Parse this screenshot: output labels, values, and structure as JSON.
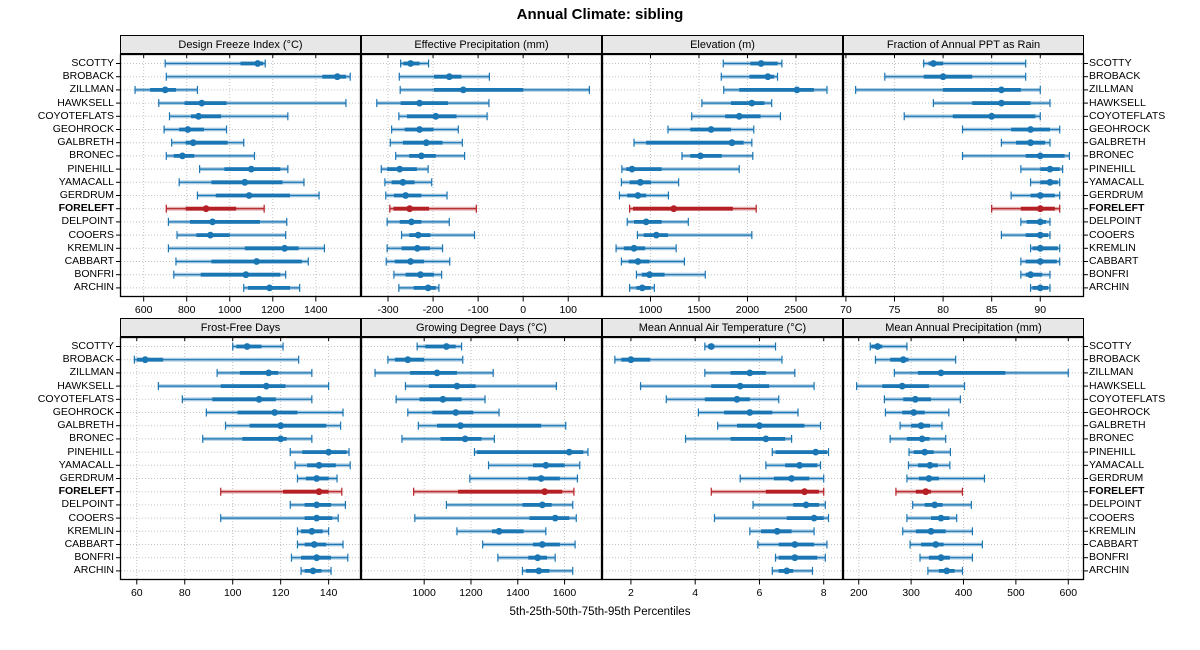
{
  "title": "Annual Climate: sibling",
  "caption": "5th-25th-50th-75th-95th Percentiles",
  "highlight_station": "FORELEFT",
  "colors": {
    "series": "#1b76b4",
    "highlight": "#b42025",
    "strip_bg": "#e7e7e7",
    "grid": "#c3c3c3",
    "panel_border": "#000000"
  },
  "stations": [
    "SCOTTY",
    "BROBACK",
    "ZILLMAN",
    "HAWKSELL",
    "COYOTEFLATS",
    "GEOHROCK",
    "GALBRETH",
    "BRONEC",
    "PINEHILL",
    "YAMACALL",
    "GERDRUM",
    "FORELEFT",
    "DELPOINT",
    "COOERS",
    "KREMLIN",
    "CABBART",
    "BONFRI",
    "ARCHIN"
  ],
  "percentile_labels": [
    "p5",
    "p25",
    "p50",
    "p75",
    "p95"
  ],
  "chart_data": [
    {
      "type": "percentile-dotplot",
      "panel": "Design Freeze Index (°C)",
      "grid_row": 0,
      "grid_col": 0,
      "xlim": [
        490,
        1610
      ],
      "ticks": [
        600,
        800,
        1000,
        1200,
        1400
      ],
      "values": [
        [
          700,
          1050,
          1130,
          1155,
          1165
        ],
        [
          705,
          1430,
          1500,
          1540,
          1560
        ],
        [
          560,
          630,
          700,
          750,
          850
        ],
        [
          670,
          790,
          870,
          985,
          1540
        ],
        [
          720,
          820,
          855,
          960,
          1270
        ],
        [
          695,
          765,
          805,
          880,
          985
        ],
        [
          730,
          795,
          830,
          990,
          1065
        ],
        [
          705,
          740,
          780,
          835,
          1115
        ],
        [
          860,
          975,
          1100,
          1235,
          1270
        ],
        [
          765,
          915,
          1070,
          1245,
          1345
        ],
        [
          850,
          935,
          1090,
          1280,
          1415
        ],
        [
          705,
          795,
          890,
          1030,
          1160
        ],
        [
          715,
          815,
          920,
          1140,
          1265
        ],
        [
          755,
          845,
          910,
          1000,
          1260
        ],
        [
          715,
          1070,
          1255,
          1320,
          1440
        ],
        [
          750,
          915,
          1125,
          1335,
          1365
        ],
        [
          740,
          865,
          1075,
          1235,
          1260
        ],
        [
          1065,
          1085,
          1185,
          1280,
          1325
        ]
      ]
    },
    {
      "type": "percentile-dotplot",
      "panel": "Effective Precipitation (mm)",
      "grid_row": 0,
      "grid_col": 1,
      "xlim": [
        -360,
        175
      ],
      "ticks": [
        -300,
        -200,
        -100,
        0,
        100
      ],
      "values": [
        [
          -272,
          -266,
          -250,
          -230,
          -210
        ],
        [
          -275,
          -198,
          -164,
          -137,
          -75
        ],
        [
          -273,
          -198,
          -133,
          0,
          147
        ],
        [
          -325,
          -272,
          -230,
          -167,
          -76
        ],
        [
          -276,
          -258,
          -194,
          -148,
          -80
        ],
        [
          -292,
          -263,
          -230,
          -199,
          -144
        ],
        [
          -295,
          -267,
          -215,
          -179,
          -135
        ],
        [
          -283,
          -253,
          -226,
          -194,
          -130
        ],
        [
          -315,
          -302,
          -274,
          -236,
          -211
        ],
        [
          -307,
          -292,
          -267,
          -241,
          -203
        ],
        [
          -305,
          -287,
          -261,
          -226,
          -169
        ],
        [
          -296,
          -288,
          -252,
          -209,
          -104
        ],
        [
          -302,
          -274,
          -248,
          -226,
          -164
        ],
        [
          -270,
          -253,
          -233,
          -206,
          -108
        ],
        [
          -302,
          -270,
          -235,
          -207,
          -179
        ],
        [
          -304,
          -285,
          -250,
          -220,
          -163
        ],
        [
          -287,
          -261,
          -228,
          -198,
          -181
        ],
        [
          -276,
          -243,
          -211,
          -194,
          -187
        ]
      ]
    },
    {
      "type": "percentile-dotplot",
      "panel": "Elevation (m)",
      "grid_row": 0,
      "grid_col": 2,
      "xlim": [
        500,
        2985
      ],
      "ticks": [
        1000,
        1500,
        2000,
        2500
      ],
      "values": [
        [
          1750,
          2030,
          2140,
          2310,
          2355
        ],
        [
          1730,
          2020,
          2210,
          2275,
          2310
        ],
        [
          1755,
          1915,
          2510,
          2685,
          2820
        ],
        [
          1530,
          1830,
          2045,
          2175,
          2250
        ],
        [
          1425,
          1770,
          1915,
          2135,
          2340
        ],
        [
          1180,
          1410,
          1625,
          1830,
          2065
        ],
        [
          830,
          955,
          1840,
          1960,
          2045
        ],
        [
          1325,
          1410,
          1515,
          1735,
          2055
        ],
        [
          705,
          750,
          810,
          1115,
          1915
        ],
        [
          700,
          785,
          895,
          1005,
          1290
        ],
        [
          680,
          760,
          870,
          955,
          1185
        ],
        [
          785,
          820,
          1240,
          1850,
          2090
        ],
        [
          760,
          830,
          955,
          1115,
          1390
        ],
        [
          865,
          930,
          1060,
          1180,
          2045
        ],
        [
          645,
          725,
          830,
          945,
          1265
        ],
        [
          700,
          775,
          870,
          990,
          1350
        ],
        [
          855,
          910,
          990,
          1145,
          1565
        ],
        [
          785,
          855,
          915,
          1000,
          1040
        ]
      ]
    },
    {
      "type": "percentile-dotplot",
      "panel": "Fraction of Annual PPT as Rain",
      "grid_row": 0,
      "grid_col": 3,
      "xlim": [
        69.7,
        94.5
      ],
      "ticks": [
        70,
        75,
        80,
        85,
        90
      ],
      "values": [
        [
          78,
          78.5,
          79,
          80,
          88.5
        ],
        [
          74,
          78,
          80,
          83,
          88.5
        ],
        [
          71,
          80,
          86,
          88,
          90
        ],
        [
          79,
          83,
          86,
          89,
          91
        ],
        [
          76,
          81,
          85,
          89.5,
          90
        ],
        [
          82,
          87,
          89,
          91,
          92
        ],
        [
          86,
          87.5,
          89,
          90.5,
          91
        ],
        [
          82,
          88.5,
          90,
          92.5,
          93
        ],
        [
          88,
          90,
          91,
          92,
          92.3
        ],
        [
          89,
          90,
          91,
          91.8,
          92
        ],
        [
          87,
          89,
          90,
          91.5,
          92
        ],
        [
          85,
          88,
          90,
          91.5,
          92
        ],
        [
          88,
          88.6,
          90,
          90.6,
          91
        ],
        [
          86,
          88.5,
          90,
          90.8,
          91
        ],
        [
          89,
          89.2,
          90,
          91.8,
          92
        ],
        [
          88,
          88.5,
          90,
          91.7,
          92
        ],
        [
          88,
          88.5,
          89,
          90.2,
          91
        ],
        [
          89,
          89.2,
          90,
          90.8,
          91
        ]
      ]
    },
    {
      "type": "percentile-dotplot",
      "panel": "Frost-Free Days",
      "grid_row": 1,
      "grid_col": 0,
      "xlim": [
        53,
        153.5
      ],
      "ticks": [
        60,
        80,
        100,
        120,
        140
      ],
      "values": [
        [
          100,
          101.5,
          106,
          112,
          121
        ],
        [
          59,
          60,
          63.5,
          71,
          127.5
        ],
        [
          93.5,
          103,
          115,
          119,
          133
        ],
        [
          69,
          95,
          114,
          122,
          140
        ],
        [
          79,
          91.5,
          111,
          118,
          133
        ],
        [
          89,
          102,
          117.5,
          127,
          146
        ],
        [
          97,
          107,
          120,
          139,
          145
        ],
        [
          87.5,
          104,
          120,
          122.5,
          133
        ],
        [
          124,
          129,
          140,
          147.5,
          148.5
        ],
        [
          126,
          131,
          136,
          143,
          149
        ],
        [
          127,
          130.5,
          135,
          140,
          143.5
        ],
        [
          95,
          121,
          136,
          140,
          145.5
        ],
        [
          124,
          130,
          135,
          141,
          147
        ],
        [
          95,
          130,
          135,
          141.5,
          144
        ],
        [
          127,
          128.5,
          133,
          137.5,
          140
        ],
        [
          127,
          130,
          134,
          139,
          146
        ],
        [
          124.5,
          128.5,
          135,
          141,
          148
        ],
        [
          128.5,
          130,
          133.5,
          137,
          141
        ]
      ]
    },
    {
      "type": "percentile-dotplot",
      "panel": "Growing Degree Days (°C)",
      "grid_row": 1,
      "grid_col": 1,
      "xlim": [
        730,
        1760
      ],
      "ticks": [
        1000,
        1200,
        1400,
        1600
      ],
      "values": [
        [
          970,
          1005,
          1095,
          1135,
          1160
        ],
        [
          845,
          875,
          930,
          1000,
          1165
        ],
        [
          790,
          940,
          1055,
          1140,
          1295
        ],
        [
          920,
          1020,
          1140,
          1220,
          1565
        ],
        [
          880,
          980,
          1080,
          1160,
          1260
        ],
        [
          930,
          1035,
          1135,
          1210,
          1320
        ],
        [
          975,
          1055,
          1155,
          1500,
          1605
        ],
        [
          905,
          1070,
          1175,
          1245,
          1300
        ],
        [
          1215,
          1225,
          1620,
          1680,
          1700
        ],
        [
          1275,
          1465,
          1520,
          1600,
          1665
        ],
        [
          1195,
          1445,
          1500,
          1580,
          1655
        ],
        [
          955,
          1145,
          1515,
          1590,
          1640
        ],
        [
          1095,
          1420,
          1505,
          1545,
          1635
        ],
        [
          960,
          1450,
          1560,
          1620,
          1650
        ],
        [
          1140,
          1290,
          1320,
          1425,
          1520
        ],
        [
          1250,
          1465,
          1505,
          1580,
          1645
        ],
        [
          1315,
          1445,
          1485,
          1525,
          1560
        ],
        [
          1420,
          1435,
          1490,
          1535,
          1635
        ]
      ]
    },
    {
      "type": "percentile-dotplot",
      "panel": "Mean Annual Air Temperature (°C)",
      "grid_row": 1,
      "grid_col": 2,
      "xlim": [
        1.1,
        8.6
      ],
      "ticks": [
        2,
        4,
        6,
        8
      ],
      "values": [
        [
          4.3,
          4.4,
          4.5,
          4.6,
          6.5
        ],
        [
          1.5,
          1.7,
          2.0,
          2.6,
          6.7
        ],
        [
          4.3,
          5.1,
          5.7,
          6.2,
          7.1
        ],
        [
          2.3,
          4.5,
          5.4,
          6.3,
          7.7
        ],
        [
          3.1,
          4.3,
          5.3,
          5.7,
          6.6
        ],
        [
          4.1,
          4.9,
          5.7,
          6.4,
          7.2
        ],
        [
          4.7,
          5.3,
          6.0,
          7.4,
          7.9
        ],
        [
          3.7,
          5.1,
          6.2,
          6.8,
          7.0
        ],
        [
          6.4,
          6.5,
          7.75,
          8.1,
          8.15
        ],
        [
          6.2,
          6.8,
          7.25,
          7.8,
          7.9
        ],
        [
          5.4,
          6.45,
          7.0,
          7.55,
          8.0
        ],
        [
          4.5,
          6.2,
          7.4,
          7.85,
          8.0
        ],
        [
          5.8,
          7.05,
          7.45,
          7.85,
          8.05
        ],
        [
          4.6,
          6.85,
          7.7,
          8.0,
          8.15
        ],
        [
          5.7,
          6.05,
          6.55,
          7.0,
          7.7
        ],
        [
          5.95,
          6.6,
          7.1,
          7.7,
          8.1
        ],
        [
          6.5,
          6.6,
          7.1,
          7.8,
          8.05
        ],
        [
          6.4,
          6.6,
          6.85,
          7.05,
          7.65
        ]
      ]
    },
    {
      "type": "percentile-dotplot",
      "panel": "Mean Annual Precipitation (mm)",
      "grid_row": 1,
      "grid_col": 3,
      "xlim": [
        170,
        630
      ],
      "ticks": [
        200,
        300,
        400,
        500,
        600
      ],
      "values": [
        [
          222,
          224,
          236,
          245,
          292
        ],
        [
          232,
          260,
          285,
          295,
          385
        ],
        [
          268,
          313,
          357,
          480,
          600
        ],
        [
          196,
          245,
          283,
          334,
          402
        ],
        [
          249,
          285,
          308,
          338,
          394
        ],
        [
          251,
          283,
          305,
          326,
          372
        ],
        [
          279,
          300,
          319,
          336,
          359
        ],
        [
          260,
          292,
          321,
          335,
          366
        ],
        [
          296,
          305,
          326,
          343,
          375
        ],
        [
          295,
          313,
          336,
          351,
          374
        ],
        [
          292,
          315,
          334,
          353,
          440
        ],
        [
          271,
          309,
          328,
          338,
          398
        ],
        [
          303,
          326,
          345,
          360,
          415
        ],
        [
          292,
          338,
          357,
          373,
          387
        ],
        [
          284,
          309,
          338,
          366,
          417
        ],
        [
          298,
          319,
          347,
          362,
          436
        ],
        [
          317,
          334,
          357,
          374,
          417
        ],
        [
          332,
          353,
          368,
          383,
          398
        ]
      ]
    }
  ]
}
